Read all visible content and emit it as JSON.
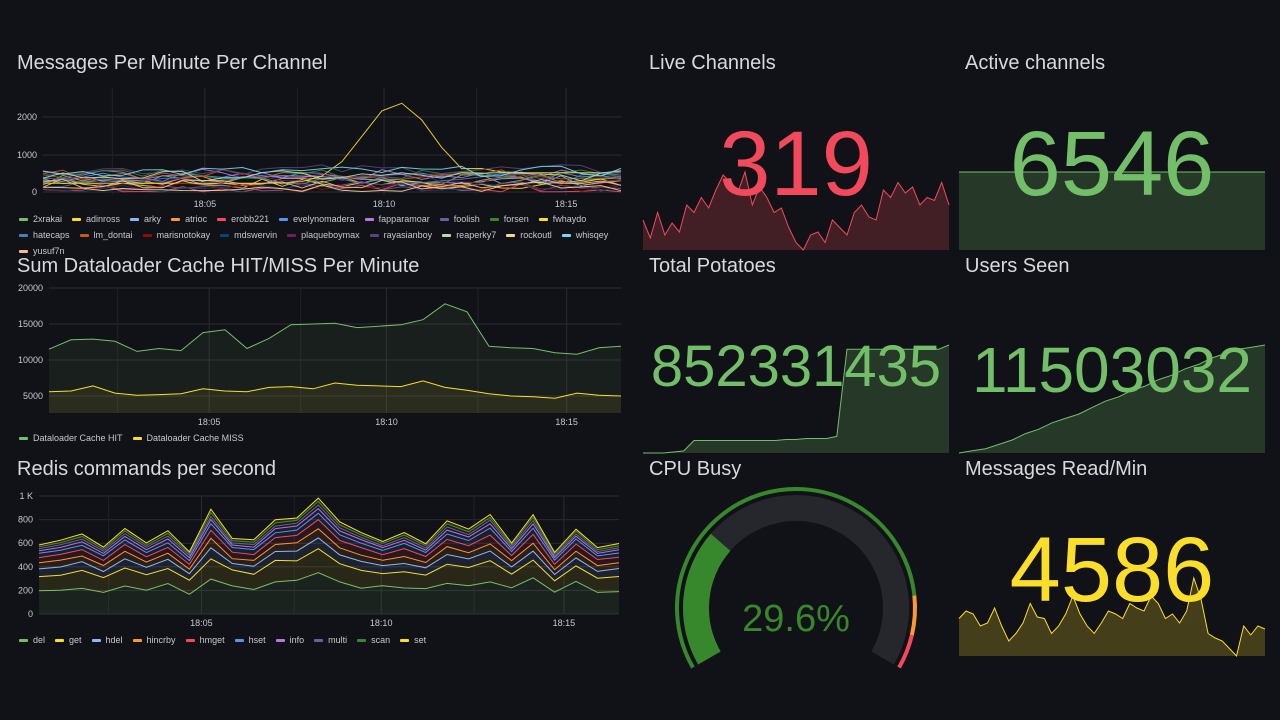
{
  "panels": {
    "messages": {
      "title": "Messages Per Minute Per Channel",
      "y_ticks": [
        "2000",
        "1000",
        "0"
      ],
      "x_ticks": [
        "18:05",
        "18:10",
        "18:15"
      ],
      "legend": [
        {
          "name": "2xrakai",
          "color": "#73bf69"
        },
        {
          "name": "adinross",
          "color": "#fade2a"
        },
        {
          "name": "arky",
          "color": "#8ab8ff"
        },
        {
          "name": "atrioc",
          "color": "#ff9830"
        },
        {
          "name": "erobb221",
          "color": "#f2495c"
        },
        {
          "name": "evelynomadera",
          "color": "#5794f2"
        },
        {
          "name": "fapparamoar",
          "color": "#b877d9"
        },
        {
          "name": "foolish",
          "color": "#705da0"
        },
        {
          "name": "forsen",
          "color": "#37872d"
        },
        {
          "name": "fwhaydo",
          "color": "#fade2a"
        },
        {
          "name": "hatecaps",
          "color": "#447ebc"
        },
        {
          "name": "lm_dontai",
          "color": "#c15c17"
        },
        {
          "name": "marisnotokay",
          "color": "#890f02"
        },
        {
          "name": "mdswervin",
          "color": "#0a437c"
        },
        {
          "name": "plaqueboymax",
          "color": "#6d1f62"
        },
        {
          "name": "rayasianboy",
          "color": "#584477"
        },
        {
          "name": "reaperky7",
          "color": "#b7dbab"
        },
        {
          "name": "rockoutl",
          "color": "#f4d598"
        },
        {
          "name": "whisqey",
          "color": "#70dbed"
        },
        {
          "name": "yusuf7n",
          "color": "#f9ba8f"
        }
      ]
    },
    "dataloader": {
      "title": "Sum Dataloader Cache HIT/MISS Per Minute",
      "y_ticks": [
        "20000",
        "15000",
        "10000",
        "5000"
      ],
      "x_ticks": [
        "18:05",
        "18:10",
        "18:15"
      ],
      "legend": [
        {
          "name": "Dataloader Cache HIT",
          "color": "#73bf69"
        },
        {
          "name": "Dataloader Cache MISS",
          "color": "#fade2a"
        }
      ]
    },
    "redis": {
      "title": "Redis commands per second",
      "y_ticks": [
        "1 K",
        "800",
        "600",
        "400",
        "200",
        "0"
      ],
      "x_ticks": [
        "18:05",
        "18:10",
        "18:15"
      ],
      "legend": [
        {
          "name": "del",
          "color": "#73bf69"
        },
        {
          "name": "get",
          "color": "#fade2a"
        },
        {
          "name": "hdel",
          "color": "#8ab8ff"
        },
        {
          "name": "hincrby",
          "color": "#ff9830"
        },
        {
          "name": "hmget",
          "color": "#f2495c"
        },
        {
          "name": "hset",
          "color": "#5794f2"
        },
        {
          "name": "info",
          "color": "#b877d9"
        },
        {
          "name": "multi",
          "color": "#705da0"
        },
        {
          "name": "scan",
          "color": "#37872d"
        },
        {
          "name": "set",
          "color": "#fade2a"
        }
      ]
    },
    "live_channels": {
      "title": "Live Channels",
      "value": "319",
      "color": "#f2495c"
    },
    "active_channels": {
      "title": "Active channels",
      "value": "6546",
      "color": "#73bf69"
    },
    "total_potatoes": {
      "title": "Total Potatoes",
      "value": "852331435",
      "color": "#73bf69"
    },
    "users_seen": {
      "title": "Users Seen",
      "value": "11503032",
      "color": "#73bf69"
    },
    "cpu_busy": {
      "title": "CPU Busy",
      "value": "29.6%",
      "percent": 29.6,
      "color": "#37872d"
    },
    "messages_read": {
      "title": "Messages Read/Min",
      "value": "4586",
      "color": "#fade2a"
    }
  }
}
